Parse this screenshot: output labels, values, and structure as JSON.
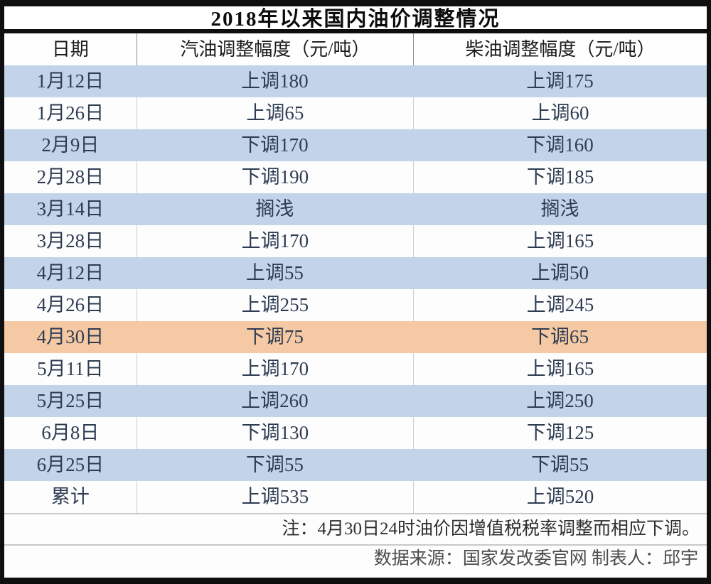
{
  "title": "2018年以来国内油价调整情况",
  "table": {
    "headers": [
      "日期",
      "汽油调整幅度（元/吨）",
      "柴油调整幅度（元/吨）"
    ],
    "rows": [
      {
        "date": "1月12日",
        "gasoline": "上调180",
        "diesel": "上调175",
        "highlight": "blue"
      },
      {
        "date": "1月26日",
        "gasoline": "上调65",
        "diesel": "上调60",
        "highlight": "none"
      },
      {
        "date": "2月9日",
        "gasoline": "下调170",
        "diesel": "下调160",
        "highlight": "blue"
      },
      {
        "date": "2月28日",
        "gasoline": "下调190",
        "diesel": "下调185",
        "highlight": "none"
      },
      {
        "date": "3月14日",
        "gasoline": "搁浅",
        "diesel": "搁浅",
        "highlight": "blue"
      },
      {
        "date": "3月28日",
        "gasoline": "上调170",
        "diesel": "上调165",
        "highlight": "none"
      },
      {
        "date": "4月12日",
        "gasoline": "上调55",
        "diesel": "上调50",
        "highlight": "blue"
      },
      {
        "date": "4月26日",
        "gasoline": "上调255",
        "diesel": "上调245",
        "highlight": "none"
      },
      {
        "date": "4月30日",
        "gasoline": "下调75",
        "diesel": "下调65",
        "highlight": "orange"
      },
      {
        "date": "5月11日",
        "gasoline": "上调170",
        "diesel": "上调165",
        "highlight": "none"
      },
      {
        "date": "5月25日",
        "gasoline": "上调260",
        "diesel": "上调250",
        "highlight": "blue"
      },
      {
        "date": "6月8日",
        "gasoline": "下调130",
        "diesel": "下调125",
        "highlight": "none"
      },
      {
        "date": "6月25日",
        "gasoline": "下调55",
        "diesel": "下调55",
        "highlight": "blue"
      },
      {
        "date": "累计",
        "gasoline": "上调535",
        "diesel": "上调520",
        "highlight": "none"
      }
    ],
    "note": "注：4月30日24时油价因增值税税率调整而相应下调。",
    "footer": "数据来源：国家发改委官网 制表人：邱宇"
  },
  "colors": {
    "blue": "#c3d3ea",
    "orange": "#f5c9a4",
    "none": "#fdfdfd",
    "frame": "#0f0f0f"
  },
  "chart_data": {
    "type": "table",
    "title": "2018年以来国内油价调整情况",
    "columns": [
      "日期",
      "汽油调整幅度（元/吨）",
      "柴油调整幅度（元/吨）"
    ],
    "rows": [
      [
        "1月12日",
        "上调180",
        "上调175"
      ],
      [
        "1月26日",
        "上调65",
        "上调60"
      ],
      [
        "2月9日",
        "下调170",
        "下调160"
      ],
      [
        "2月28日",
        "下调190",
        "下调185"
      ],
      [
        "3月14日",
        "搁浅",
        "搁浅"
      ],
      [
        "3月28日",
        "上调170",
        "上调165"
      ],
      [
        "4月12日",
        "上调55",
        "上调50"
      ],
      [
        "4月26日",
        "上调255",
        "上调245"
      ],
      [
        "4月30日",
        "下调75",
        "下调65"
      ],
      [
        "5月11日",
        "上调170",
        "上调165"
      ],
      [
        "5月25日",
        "上调260",
        "上调250"
      ],
      [
        "6月8日",
        "下调130",
        "下调125"
      ],
      [
        "6月25日",
        "下调55",
        "下调55"
      ],
      [
        "累计",
        "上调535",
        "上调520"
      ]
    ],
    "note": "注：4月30日24时油价因增值税税率调整而相应下调。",
    "source": "数据来源：国家发改委官网",
    "author": "制表人：邱宇",
    "layout_hints": {
      "striped_rows": "alternating light blue",
      "highlighted_row": "4月30日 (orange)",
      "frame": "thick black border"
    }
  }
}
